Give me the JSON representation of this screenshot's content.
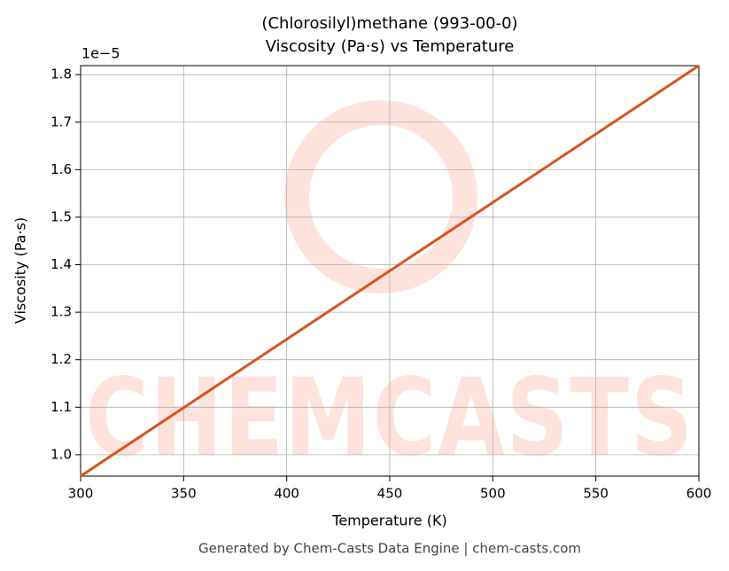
{
  "chart_data": {
    "type": "line",
    "title": "(Chlorosilyl)methane (993-00-0)",
    "subtitle": "Viscosity (Pa·s) vs Temperature",
    "x_label": "Temperature (K)",
    "y_label": "Viscosity (Pa·s)",
    "y_offset_label": "1e−5",
    "footer": "Generated by Chem-Casts Data Engine | chem-casts.com",
    "watermark": "CHEMCASTS",
    "x": [
      300,
      400,
      500,
      600
    ],
    "series": [
      {
        "name": "Viscosity",
        "color": "#d9531e",
        "values": [
          0.955,
          1.243,
          1.531,
          1.819
        ]
      }
    ],
    "xlim": [
      300,
      600
    ],
    "xticks": [
      300,
      350,
      400,
      450,
      500,
      550,
      600
    ],
    "ylim": [
      0.955,
      1.819
    ],
    "yticks": [
      {
        "value": 1,
        "label": "1.0"
      },
      1.1,
      1.2,
      1.3,
      1.4,
      1.5,
      1.6,
      1.7,
      1.8
    ],
    "grid": true,
    "legend": false
  }
}
